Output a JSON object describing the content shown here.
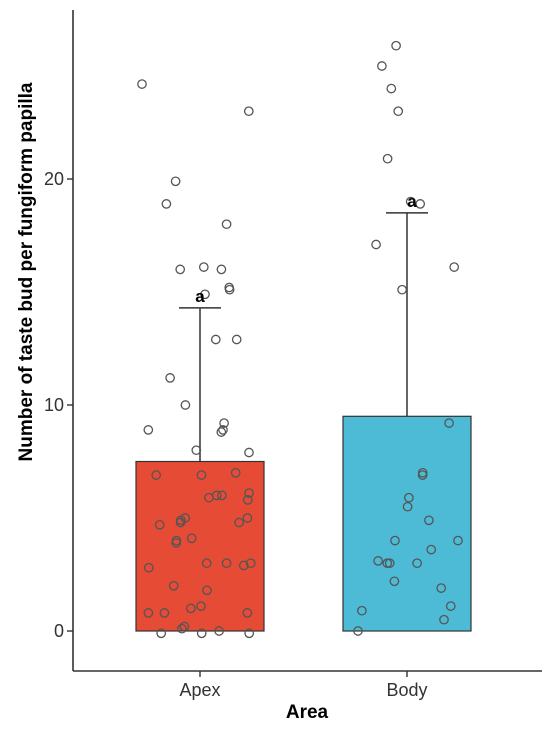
{
  "chart_data": {
    "type": "bar",
    "title": "",
    "xlabel": "Area",
    "ylabel": "Number of taste bud per fungiform papilla",
    "categories": [
      "Apex",
      "Body"
    ],
    "values": [
      7.5,
      9.5
    ],
    "error_upper": [
      14.3,
      18.5
    ],
    "significance_labels": [
      "a",
      "a"
    ],
    "ylim": [
      -1.8,
      27.5
    ],
    "yticks": [
      0,
      10,
      20
    ],
    "grid": false,
    "legend": "none",
    "colors": [
      "#E64B35",
      "#4DBBD5"
    ],
    "bar_edge_color": "#333333",
    "point_style": "open-circle",
    "points": [
      [
        24.2,
        23.0,
        19.9,
        18.9,
        18.0,
        16.1,
        16.0,
        15.2,
        15.1,
        14.9,
        16.0,
        12.9,
        12.9,
        11.2,
        10.0,
        9.2,
        8.9,
        8.9,
        8.8,
        8.0,
        7.9,
        7.0,
        6.9,
        6.9,
        6.1,
        6.0,
        6.0,
        5.9,
        5.8,
        5.0,
        5.0,
        4.9,
        4.8,
        4.8,
        4.7,
        4.0,
        4.1,
        3.9,
        3.0,
        3.0,
        3.0,
        2.9,
        2.8,
        2.0,
        1.8,
        1.1,
        1.0,
        0.8,
        0.8,
        0.8,
        0.2,
        0.1,
        0.0,
        -0.1,
        -0.1,
        -0.1
      ],
      [
        25.9,
        25.0,
        24.0,
        23.0,
        20.9,
        19.0,
        18.9,
        17.1,
        16.1,
        15.1,
        9.2,
        7.0,
        6.9,
        5.9,
        5.5,
        4.9,
        4.0,
        4.0,
        3.6,
        3.1,
        3.0,
        3.0,
        3.0,
        2.2,
        1.9,
        1.1,
        0.9,
        0.5,
        0.0
      ]
    ]
  }
}
